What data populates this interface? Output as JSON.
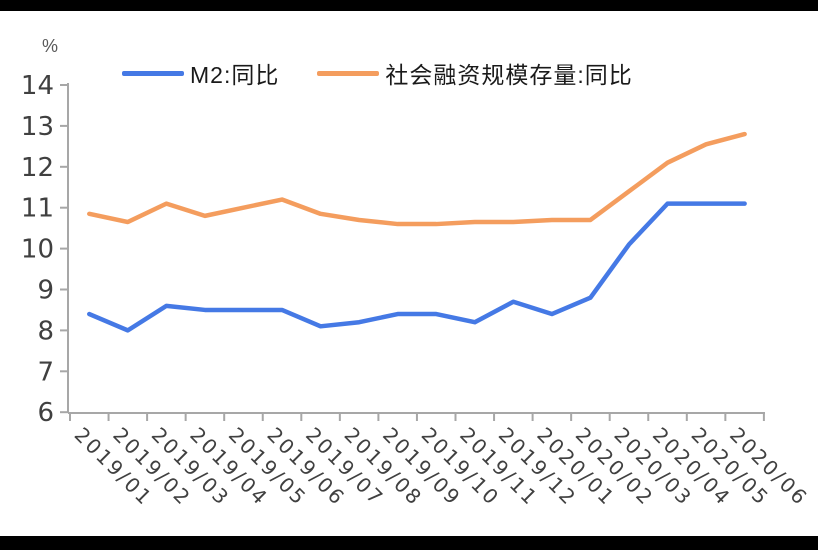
{
  "chart_data": {
    "type": "line",
    "unit_label": "%",
    "categories": [
      "2019/01",
      "2019/02",
      "2019/03",
      "2019/04",
      "2019/05",
      "2019/06",
      "2019/07",
      "2019/08",
      "2019/09",
      "2019/10",
      "2019/11",
      "2019/12",
      "2020/01",
      "2020/02",
      "2020/03",
      "2020/04",
      "2020/05",
      "2020/06"
    ],
    "series": [
      {
        "name": "M2:同比",
        "color": "#4579E5",
        "values": [
          8.4,
          8.0,
          8.6,
          8.5,
          8.5,
          8.5,
          8.1,
          8.2,
          8.4,
          8.4,
          8.2,
          8.7,
          8.4,
          8.8,
          10.1,
          11.1,
          11.1,
          11.1
        ]
      },
      {
        "name": "社会融资规模存量:同比",
        "color": "#F49D5E",
        "values": [
          10.85,
          10.65,
          11.1,
          10.8,
          11.0,
          11.2,
          10.85,
          10.7,
          10.6,
          10.6,
          10.65,
          10.65,
          10.7,
          10.7,
          11.4,
          12.1,
          12.55,
          12.8
        ]
      }
    ],
    "ylim": [
      6,
      14
    ],
    "ytick_step": 1,
    "grid": false,
    "legend_position": "top",
    "x_label_rotation_deg": 45,
    "style": {
      "axis_color": "#A7A7A7",
      "tick_label_color": "#404040",
      "legend_text_color": "#1A1A1A",
      "background": "#FFFFFF",
      "border_bar_color": "#000000",
      "line_width": 4.5
    }
  }
}
